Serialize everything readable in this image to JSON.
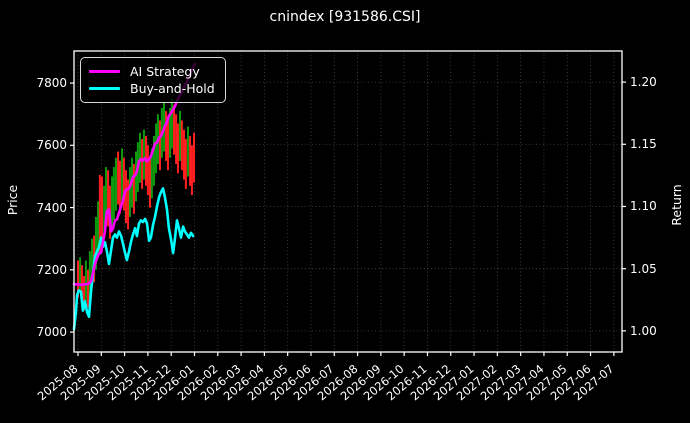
{
  "chart_data": {
    "type": "candlestick+line",
    "title": "cnindex [931586.CSI]",
    "legend_position": "upper-left",
    "background_color": "#000000",
    "grid": {
      "on": true,
      "style": "dotted",
      "color": "#4a4a4a"
    },
    "price_axis": {
      "label": "Price",
      "side": "left",
      "ticks": [
        7000,
        7200,
        7400,
        7600,
        7800
      ],
      "lim": [
        6936,
        7903
      ]
    },
    "return_axis": {
      "label": "Return",
      "side": "right",
      "ticks": [
        "1.00",
        "1.05",
        "1.10",
        "1.15",
        "1.20"
      ],
      "tick_values": [
        1.0,
        1.05,
        1.1,
        1.15,
        1.2
      ],
      "lim": [
        0.983,
        1.225
      ]
    },
    "x_axis": {
      "tick_labels": [
        "2025-08",
        "2025-09",
        "2025-10",
        "2025-11",
        "2025-12",
        "2026-01",
        "2026-02",
        "2026-03",
        "2026-04",
        "2026-05",
        "2026-06",
        "2026-07",
        "2026-08",
        "2026-09",
        "2026-10",
        "2026-11",
        "2026-12",
        "2027-01",
        "2027-02",
        "2027-03",
        "2027-04",
        "2027-05",
        "2027-06",
        "2027-07"
      ],
      "lim": [
        -0.172,
        23.35
      ],
      "label_rotation_deg": 40
    },
    "candle_colors": {
      "up": "#0f9b0f",
      "down": "#ff2020"
    },
    "candles": [
      [
        0.0,
        7110,
        7230,
        "r"
      ],
      [
        0.09,
        7130,
        7240,
        "g"
      ],
      [
        0.17,
        7090,
        7215,
        "r"
      ],
      [
        0.26,
        7070,
        7180,
        "r"
      ],
      [
        0.34,
        7100,
        7230,
        "g"
      ],
      [
        0.43,
        7080,
        7200,
        "r"
      ],
      [
        0.51,
        7110,
        7260,
        "g"
      ],
      [
        0.6,
        7150,
        7300,
        "g"
      ],
      [
        0.69,
        7160,
        7310,
        "r"
      ],
      [
        0.77,
        7200,
        7370,
        "g"
      ],
      [
        0.86,
        7240,
        7420,
        "g"
      ],
      [
        0.94,
        7250,
        7505,
        "r"
      ],
      [
        1.03,
        7300,
        7500,
        "r"
      ],
      [
        1.12,
        7300,
        7470,
        "g"
      ],
      [
        1.2,
        7340,
        7530,
        "g"
      ],
      [
        1.29,
        7340,
        7520,
        "r"
      ],
      [
        1.37,
        7300,
        7470,
        "r"
      ],
      [
        1.46,
        7330,
        7500,
        "g"
      ],
      [
        1.54,
        7360,
        7530,
        "g"
      ],
      [
        1.63,
        7390,
        7560,
        "g"
      ],
      [
        1.72,
        7410,
        7580,
        "r"
      ],
      [
        1.8,
        7380,
        7550,
        "r"
      ],
      [
        1.89,
        7420,
        7590,
        "g"
      ],
      [
        1.97,
        7390,
        7560,
        "r"
      ],
      [
        2.06,
        7350,
        7520,
        "r"
      ],
      [
        2.15,
        7330,
        7490,
        "r"
      ],
      [
        2.23,
        7370,
        7530,
        "g"
      ],
      [
        2.32,
        7400,
        7560,
        "g"
      ],
      [
        2.4,
        7380,
        7540,
        "r"
      ],
      [
        2.49,
        7420,
        7580,
        "g"
      ],
      [
        2.57,
        7450,
        7610,
        "g"
      ],
      [
        2.66,
        7480,
        7640,
        "g"
      ],
      [
        2.75,
        7460,
        7620,
        "r"
      ],
      [
        2.83,
        7490,
        7650,
        "g"
      ],
      [
        2.92,
        7470,
        7630,
        "r"
      ],
      [
        3.0,
        7440,
        7600,
        "r"
      ],
      [
        3.09,
        7400,
        7560,
        "r"
      ],
      [
        3.17,
        7430,
        7590,
        "g"
      ],
      [
        3.26,
        7470,
        7630,
        "g"
      ],
      [
        3.35,
        7510,
        7670,
        "g"
      ],
      [
        3.43,
        7540,
        7700,
        "g"
      ],
      [
        3.52,
        7520,
        7680,
        "r"
      ],
      [
        3.6,
        7560,
        7720,
        "g"
      ],
      [
        3.69,
        7580,
        7740,
        "g"
      ],
      [
        3.78,
        7550,
        7710,
        "r"
      ],
      [
        3.86,
        7520,
        7680,
        "r"
      ],
      [
        3.95,
        7560,
        7720,
        "g"
      ],
      [
        4.03,
        7590,
        7750,
        "g"
      ],
      [
        4.12,
        7570,
        7730,
        "r"
      ],
      [
        4.21,
        7540,
        7700,
        "r"
      ],
      [
        4.29,
        7510,
        7670,
        "r"
      ],
      [
        4.38,
        7550,
        7710,
        "g"
      ],
      [
        4.46,
        7520,
        7680,
        "r"
      ],
      [
        4.55,
        7490,
        7650,
        "r"
      ],
      [
        4.63,
        7460,
        7620,
        "r"
      ],
      [
        4.72,
        7500,
        7660,
        "g"
      ],
      [
        4.81,
        7470,
        7630,
        "r"
      ],
      [
        4.89,
        7440,
        7600,
        "r"
      ],
      [
        4.98,
        7480,
        7640,
        "r"
      ]
    ],
    "series": [
      {
        "name": "AI Strategy",
        "color": "#ff00ff",
        "axis": "return",
        "points": [
          [
            -0.17,
            1.0375
          ],
          [
            0.2,
            1.037
          ],
          [
            0.47,
            1.038
          ],
          [
            0.56,
            1.04
          ],
          [
            0.64,
            1.0463
          ],
          [
            0.73,
            1.0538
          ],
          [
            0.82,
            1.0588
          ],
          [
            0.9,
            1.062
          ],
          [
            0.99,
            1.063
          ],
          [
            1.07,
            1.0713
          ],
          [
            1.16,
            1.08
          ],
          [
            1.2,
            1.09
          ],
          [
            1.24,
            1.0963
          ],
          [
            1.33,
            1.0975
          ],
          [
            1.38,
            1.0875
          ],
          [
            1.42,
            1.08
          ],
          [
            1.5,
            1.0825
          ],
          [
            1.59,
            1.0888
          ],
          [
            1.67,
            1.0895
          ],
          [
            1.76,
            1.095
          ],
          [
            1.85,
            1.1
          ],
          [
            1.93,
            1.105
          ],
          [
            2.02,
            1.112
          ],
          [
            2.1,
            1.1138
          ],
          [
            2.19,
            1.1145
          ],
          [
            2.27,
            1.118
          ],
          [
            2.36,
            1.1238
          ],
          [
            2.45,
            1.125
          ],
          [
            2.53,
            1.128
          ],
          [
            2.62,
            1.1363
          ],
          [
            2.7,
            1.138
          ],
          [
            2.79,
            1.137
          ],
          [
            2.88,
            1.1388
          ],
          [
            2.96,
            1.1363
          ],
          [
            3.05,
            1.138
          ],
          [
            3.13,
            1.1405
          ],
          [
            3.22,
            1.1455
          ],
          [
            3.3,
            1.1505
          ],
          [
            3.39,
            1.1513
          ],
          [
            3.48,
            1.1555
          ],
          [
            3.56,
            1.1565
          ],
          [
            3.65,
            1.1605
          ],
          [
            3.73,
            1.1645
          ],
          [
            3.82,
            1.168
          ],
          [
            3.9,
            1.173
          ],
          [
            3.99,
            1.175
          ],
          [
            4.08,
            1.178
          ],
          [
            4.16,
            1.1805
          ],
          [
            4.25,
            1.1845
          ],
          [
            4.33,
            1.188
          ],
          [
            4.42,
            1.1905
          ],
          [
            4.51,
            1.1945
          ],
          [
            4.59,
            1.197
          ],
          [
            4.68,
            1.2005
          ],
          [
            4.76,
            1.2045
          ],
          [
            4.85,
            1.208
          ],
          [
            4.94,
            1.212
          ],
          [
            5.02,
            1.2145
          ]
        ]
      },
      {
        "name": "Buy-and-Hold",
        "color": "#00ffff",
        "axis": "return",
        "points": [
          [
            -0.17,
            1.0013
          ],
          [
            -0.09,
            1.015
          ],
          [
            -0.04,
            1.0288
          ],
          [
            0.04,
            1.0325
          ],
          [
            0.13,
            1.0313
          ],
          [
            0.21,
            1.0163
          ],
          [
            0.3,
            1.0238
          ],
          [
            0.39,
            1.015
          ],
          [
            0.47,
            1.0113
          ],
          [
            0.56,
            1.0325
          ],
          [
            0.64,
            1.045
          ],
          [
            0.73,
            1.06
          ],
          [
            0.82,
            1.0638
          ],
          [
            0.9,
            1.0675
          ],
          [
            0.99,
            1.075
          ],
          [
            1.07,
            1.0675
          ],
          [
            1.16,
            1.0713
          ],
          [
            1.24,
            1.0638
          ],
          [
            1.33,
            1.0538
          ],
          [
            1.42,
            1.065
          ],
          [
            1.5,
            1.075
          ],
          [
            1.59,
            1.0775
          ],
          [
            1.67,
            1.075
          ],
          [
            1.76,
            1.08
          ],
          [
            1.85,
            1.0763
          ],
          [
            1.93,
            1.07
          ],
          [
            2.02,
            1.0625
          ],
          [
            2.1,
            1.057
          ],
          [
            2.19,
            1.0638
          ],
          [
            2.27,
            1.0713
          ],
          [
            2.36,
            1.0775
          ],
          [
            2.45,
            1.0825
          ],
          [
            2.53,
            1.0763
          ],
          [
            2.62,
            1.0863
          ],
          [
            2.7,
            1.0888
          ],
          [
            2.79,
            1.0875
          ],
          [
            2.88,
            1.09
          ],
          [
            2.96,
            1.0863
          ],
          [
            3.05,
            1.0725
          ],
          [
            3.13,
            1.075
          ],
          [
            3.22,
            1.085
          ],
          [
            3.3,
            1.0913
          ],
          [
            3.39,
            1.1
          ],
          [
            3.48,
            1.1075
          ],
          [
            3.56,
            1.1113
          ],
          [
            3.65,
            1.1145
          ],
          [
            3.73,
            1.1075
          ],
          [
            3.82,
            1.0975
          ],
          [
            3.9,
            1.0825
          ],
          [
            3.99,
            1.0738
          ],
          [
            4.08,
            1.0625
          ],
          [
            4.16,
            1.0738
          ],
          [
            4.25,
            1.0888
          ],
          [
            4.33,
            1.0825
          ],
          [
            4.42,
            1.075
          ],
          [
            4.51,
            1.0838
          ],
          [
            4.59,
            1.08
          ],
          [
            4.68,
            1.0775
          ],
          [
            4.76,
            1.075
          ],
          [
            4.85,
            1.0788
          ],
          [
            4.94,
            1.0763
          ]
        ]
      }
    ]
  }
}
